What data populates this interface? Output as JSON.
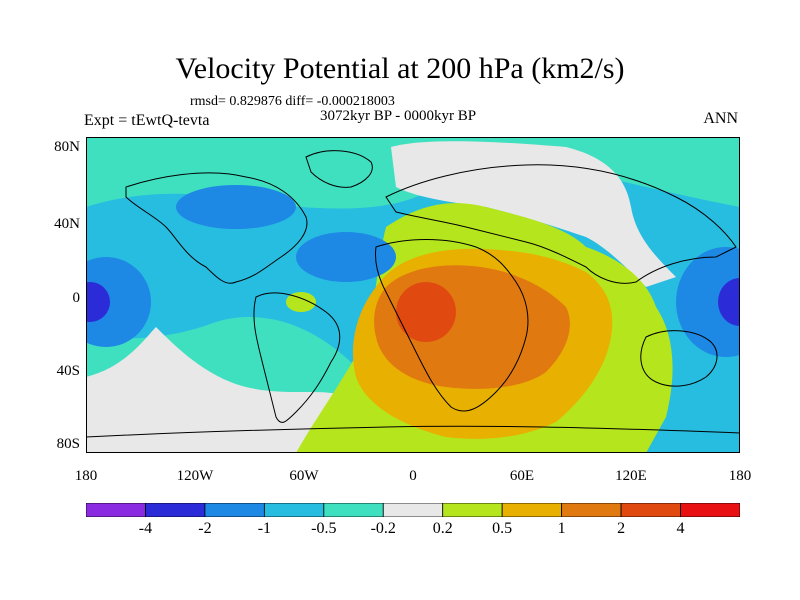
{
  "title": "Velocity Potential at 200 hPa (km2/s)",
  "stats": "rmsd= 0.829876 diff= -0.000218003",
  "period": "3072kyr BP - 0000kyr BP",
  "experiment": "Expt = tEwtQ-tevta",
  "season": "ANN",
  "latitude_labels": [
    "80N",
    "40N",
    "0",
    "40S",
    "80S"
  ],
  "longitude_labels": [
    "180",
    "120W",
    "60W",
    "0",
    "60E",
    "120E",
    "180"
  ],
  "colorbar": {
    "labels": [
      "-4",
      "-2",
      "-1",
      "-0.5",
      "-0.2",
      "0.2",
      "0.5",
      "1",
      "2",
      "4"
    ],
    "colors": [
      "#8a2be2",
      "#2b2bd8",
      "#1e88e5",
      "#27bde0",
      "#3fe0c0",
      "#e8e8e8",
      "#b5e61d",
      "#e8b000",
      "#e07a10",
      "#e04a10",
      "#e81010"
    ]
  },
  "map_colors": {
    "neg4": "#2b2bd8",
    "neg2": "#1e88e5",
    "neg1": "#27bde0",
    "neg05": "#3fe0c0",
    "zero": "#e8e8e8",
    "pos02": "#b5e61d",
    "pos05": "#e8b000",
    "pos1": "#e07a10",
    "pos2": "#e04a10"
  }
}
